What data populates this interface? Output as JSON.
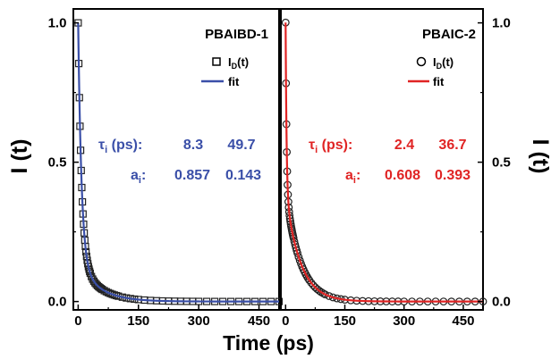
{
  "figure": {
    "ylabel_left": "I (t)",
    "ylabel_right": "I (t)",
    "xlabel": "Time (ps)"
  },
  "chart_data": [
    {
      "type": "scatter",
      "panel_title": "PBAIBD-1",
      "xlabel": "Time (ps)",
      "ylabel": "I (t)",
      "xlim": [
        -12,
        500
      ],
      "ylim": [
        -0.03,
        1.05
      ],
      "x_ticks": [
        "0",
        "150",
        "300",
        "450"
      ],
      "y_ticks": [
        "0.0",
        "0.5",
        "1.0"
      ],
      "y_tick_values": [
        0,
        0.5,
        1.0
      ],
      "x_tick_values": [
        0,
        150,
        300,
        450
      ],
      "legend": [
        {
          "label_main": "I",
          "label_sub": "D",
          "label_tail": "(t)",
          "kind": "marker",
          "marker": "square"
        },
        {
          "label_main": "fit",
          "kind": "line"
        }
      ],
      "fit_params": {
        "tau_label_main": "τ",
        "tau_label_sub": "i",
        "tau_label_tail": " (ps):",
        "tau_values": [
          "8.3",
          "49.7"
        ],
        "a_label_main": "a",
        "a_label_sub": "i",
        "a_label_tail": ":",
        "a_values": [
          "0.857",
          "0.143"
        ]
      },
      "decay": {
        "a": [
          0.857,
          0.143
        ],
        "tau": [
          8.3,
          49.7
        ]
      },
      "series": [
        {
          "x": [
            0,
            1.5,
            3,
            4.5,
            6,
            7.5,
            9,
            10.5,
            12,
            13.5,
            15,
            16.5,
            18,
            19.5,
            21,
            22.5,
            24,
            25.5,
            27,
            28.5,
            30,
            33,
            36,
            39,
            42,
            45,
            48,
            51,
            54,
            57,
            60,
            65,
            70,
            75,
            80,
            85,
            90,
            95,
            100,
            110,
            120,
            130,
            140,
            150,
            165,
            180,
            195,
            210,
            225,
            240,
            255,
            270,
            285,
            300,
            320,
            340,
            360,
            380,
            400,
            420,
            440,
            460,
            480,
            500
          ]
        }
      ],
      "colors": {
        "fit": "#3a4fa8",
        "marker": "#222222",
        "text": "#3a4fa8"
      }
    },
    {
      "type": "scatter",
      "panel_title": "PBAIC-2",
      "xlabel": "Time (ps)",
      "ylabel": "I (t)",
      "xlim": [
        -12,
        500
      ],
      "ylim": [
        -0.03,
        1.05
      ],
      "x_ticks": [
        "0",
        "150",
        "300",
        "450"
      ],
      "y_ticks": [
        "0.0",
        "0.5",
        "1.0"
      ],
      "y_tick_values": [
        0,
        0.5,
        1.0
      ],
      "x_tick_values": [
        0,
        150,
        300,
        450
      ],
      "legend": [
        {
          "label_main": "I",
          "label_sub": "D",
          "label_tail": "(t)",
          "kind": "marker",
          "marker": "circle"
        },
        {
          "label_main": "fit",
          "kind": "line"
        }
      ],
      "fit_params": {
        "tau_label_main": "τ",
        "tau_label_sub": "i",
        "tau_label_tail": " (ps):",
        "tau_values": [
          "2.4",
          "36.7"
        ],
        "a_label_main": "a",
        "a_label_sub": "i",
        "a_label_tail": ":",
        "a_values": [
          "0.608",
          "0.393"
        ]
      },
      "decay": {
        "a": [
          0.608,
          0.393
        ],
        "tau": [
          2.4,
          36.7
        ]
      },
      "series": [
        {
          "x": [
            0,
            1,
            2,
            3,
            4,
            5,
            6,
            7,
            8,
            9,
            10,
            11,
            12,
            13,
            14,
            15,
            16,
            17,
            18,
            19,
            20,
            22,
            24,
            26,
            28,
            30,
            33,
            36,
            39,
            42,
            45,
            48,
            51,
            54,
            57,
            60,
            65,
            70,
            75,
            80,
            85,
            90,
            95,
            100,
            110,
            120,
            130,
            140,
            150,
            165,
            180,
            195,
            210,
            225,
            240,
            255,
            270,
            285,
            300,
            320,
            340,
            360,
            380,
            400,
            420,
            440,
            460,
            480,
            500
          ]
        }
      ],
      "colors": {
        "fit": "#e02424",
        "marker": "#222222",
        "text": "#e02424"
      }
    }
  ]
}
